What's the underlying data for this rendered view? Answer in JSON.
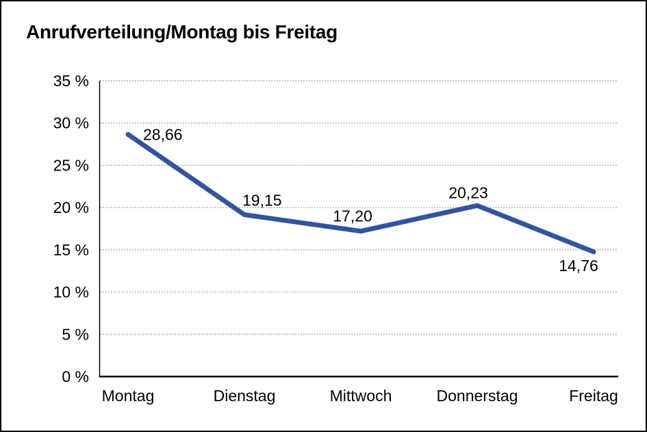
{
  "page": {
    "title": "Anrufverteilung/Montag bis Freitag"
  },
  "chart_data": {
    "type": "line",
    "title": "Anrufverteilung/Montag bis Freitag",
    "categories": [
      "Montag",
      "Dienstag",
      "Mittwoch",
      "Donnerstag",
      "Freitag"
    ],
    "series": [
      {
        "name": "Anrufverteilung",
        "values": [
          28.66,
          19.15,
          17.2,
          20.23,
          14.76
        ]
      }
    ],
    "value_labels": [
      "28,66",
      "19,15",
      "17,20",
      "20,23",
      "14,76"
    ],
    "y_ticks": [
      {
        "value": 35,
        "label": "35 %"
      },
      {
        "value": 30,
        "label": "30 %"
      },
      {
        "value": 25,
        "label": "25 %"
      },
      {
        "value": 20,
        "label": "20 %"
      },
      {
        "value": 15,
        "label": "15 %"
      },
      {
        "value": 10,
        "label": "10 %"
      },
      {
        "value": 5,
        "label": "5 %"
      },
      {
        "value": 0,
        "label": "0 %"
      }
    ],
    "ylim": [
      0,
      35
    ],
    "xlabel": "",
    "ylabel": "",
    "legend": "none",
    "grid": "horizontal-dotted",
    "colors": {
      "line": "#33549D",
      "axis": "#000000",
      "grid": "#848484",
      "text": "#000000",
      "background": "#FFFFFF",
      "border": "#000000"
    }
  }
}
